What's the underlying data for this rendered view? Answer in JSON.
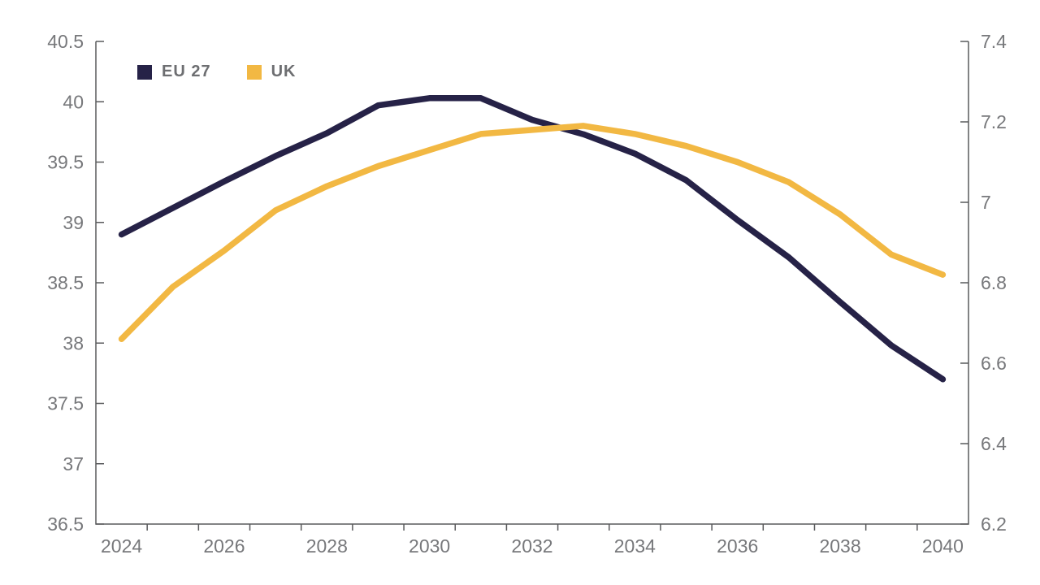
{
  "chart_data": {
    "type": "line",
    "title": "",
    "x": [
      2024,
      2025,
      2026,
      2027,
      2028,
      2029,
      2030,
      2031,
      2032,
      2033,
      2034,
      2035,
      2036,
      2037,
      2038,
      2039,
      2040
    ],
    "x_axis": {
      "tick_labels": [
        "2024",
        "2026",
        "2028",
        "2030",
        "2032",
        "2034",
        "2036",
        "2038",
        "2040"
      ],
      "label_every": 2
    },
    "left_axis": {
      "min": 36.5,
      "max": 40.5,
      "step": 0.5,
      "tick_labels": [
        "36.5",
        "37",
        "37.5",
        "38",
        "38.5",
        "39",
        "39.5",
        "40",
        "40.5"
      ]
    },
    "right_axis": {
      "min": 6.2,
      "max": 7.4,
      "step": 0.2,
      "tick_labels": [
        "6.2",
        "6.4",
        "6.6",
        "6.8",
        "7",
        "7.2",
        "7.4"
      ]
    },
    "series": [
      {
        "name": "EU 27",
        "yaxis": "left",
        "color": "#262247",
        "values": [
          38.9,
          39.12,
          39.34,
          39.55,
          39.74,
          39.97,
          40.03,
          40.03,
          39.85,
          39.73,
          39.57,
          39.35,
          39.02,
          38.71,
          38.34,
          37.98,
          37.7
        ]
      },
      {
        "name": "UK",
        "yaxis": "right",
        "color": "#F2B843",
        "values": [
          6.66,
          6.79,
          6.88,
          6.98,
          7.04,
          7.09,
          7.13,
          7.17,
          7.18,
          7.19,
          7.17,
          7.14,
          7.1,
          7.05,
          6.97,
          6.87,
          6.82
        ]
      }
    ],
    "legend": {
      "position": "top-left",
      "entries": [
        "EU 27",
        "UK"
      ]
    },
    "grid": false,
    "colors": {
      "axis": "#595a5c",
      "tick_label": "#77787b",
      "legend_text": "#6d6e71",
      "background": "#ffffff"
    }
  }
}
